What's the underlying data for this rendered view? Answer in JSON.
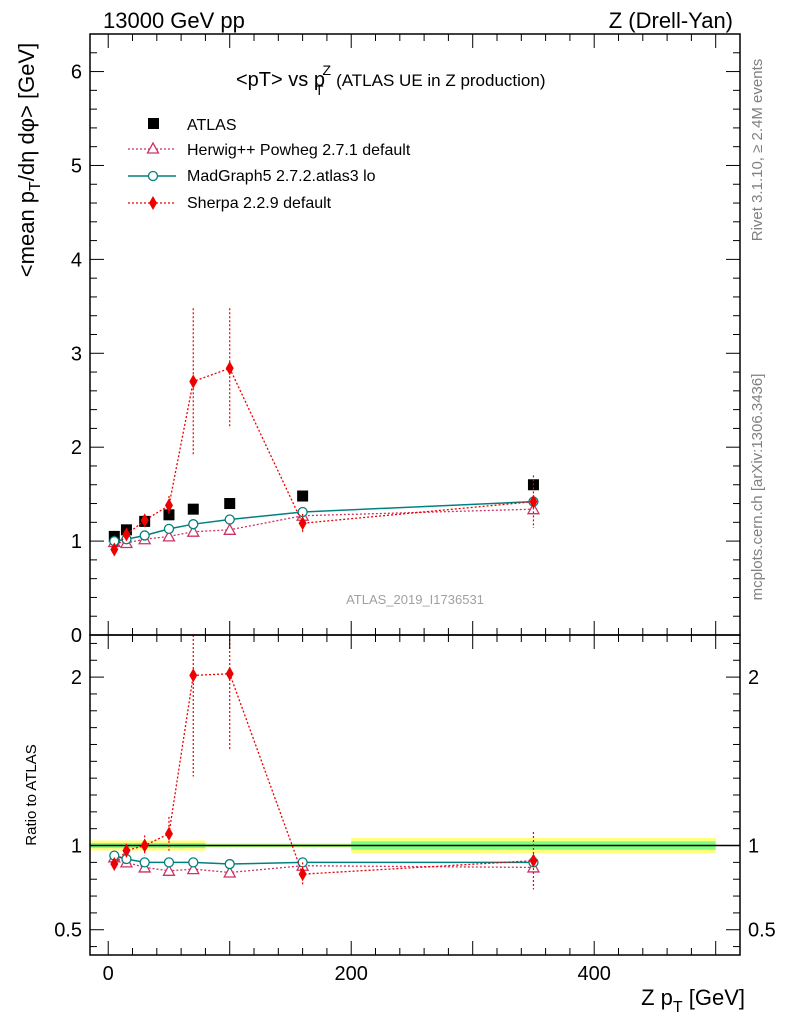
{
  "header": {
    "left": "13000 GeV pp",
    "right": "Z (Drell-Yan)"
  },
  "side_text": {
    "rivet": "Rivet 3.1.10, ≥ 2.4M events",
    "mcplots": "mcplots.cern.ch [arXiv:1306.3436]"
  },
  "watermark": "ATLAS_2019_I1736531",
  "colors": {
    "atlas": "#000000",
    "herwig": "#cc3366",
    "madgraph": "#00807f",
    "sherpa": "#ee0000",
    "band_inner": "#7fff7f",
    "band_outer": "#ffff7f"
  },
  "chart_data": [
    {
      "type": "scatter",
      "title": "<pT> vs p_T^Z (ATLAS UE in Z production)",
      "title_parts": {
        "main": "<pT> vs p",
        "sub": "T",
        "sup": "Z",
        "paren": "(ATLAS UE in Z production)"
      },
      "ylabel": "<mean p_T/dη dφ> [GeV]",
      "ylabel_parts": {
        "a": "<mean p",
        "sub": "T",
        "b": "/dη dφ> [GeV]"
      },
      "xlim": [
        -15,
        520
      ],
      "ylim": [
        0,
        6.4
      ],
      "yticks": [
        0,
        1,
        2,
        3,
        4,
        5,
        6
      ],
      "ytick_labels": [
        "0",
        "1",
        "2",
        "3",
        "4",
        "5",
        "6"
      ],
      "grid": false,
      "legend_position": "top-left",
      "series": [
        {
          "name": "ATLAS",
          "marker": "square",
          "x": [
            5,
            15,
            30,
            50,
            70,
            100,
            160,
            350
          ],
          "y": [
            1.05,
            1.12,
            1.21,
            1.28,
            1.34,
            1.4,
            1.48,
            1.6
          ]
        },
        {
          "name": "Herwig++ Powheg 2.7.1 default",
          "marker": "triangle",
          "x": [
            5,
            15,
            30,
            50,
            70,
            100,
            160,
            350
          ],
          "y": [
            0.99,
            0.98,
            1.02,
            1.05,
            1.1,
            1.12,
            1.27,
            1.34
          ]
        },
        {
          "name": "MadGraph5 2.7.2.atlas3 lo",
          "marker": "circle",
          "x": [
            5,
            15,
            30,
            50,
            70,
            100,
            160,
            350
          ],
          "y": [
            1.0,
            1.02,
            1.06,
            1.13,
            1.18,
            1.23,
            1.31,
            1.42
          ]
        },
        {
          "name": "Sherpa 2.2.9 default",
          "marker": "diamond",
          "x": [
            5,
            15,
            30,
            50,
            70,
            100,
            160,
            350
          ],
          "y": [
            0.91,
            1.07,
            1.22,
            1.38,
            2.7,
            2.84,
            1.19,
            1.42
          ],
          "err": [
            0.04,
            0.05,
            0.06,
            0.1,
            0.78,
            0.64,
            0.1,
            0.28
          ]
        }
      ]
    },
    {
      "type": "scatter",
      "xlabel": "Z p_T [GeV]",
      "xlabel_parts": {
        "a": "Z p",
        "sub": "T",
        "b": " [GeV]"
      },
      "ylabel": "Ratio to ATLAS",
      "xlim": [
        -15,
        520
      ],
      "ylim": [
        0.35,
        2.25
      ],
      "xticks": [
        0,
        200,
        400
      ],
      "xtick_labels": [
        "0",
        "200",
        "400"
      ],
      "yticks": [
        0.5,
        1,
        2
      ],
      "ytick_labels": [
        "0.5",
        "1",
        "2"
      ],
      "reference_line": 1,
      "band": [
        {
          "x0": -15,
          "x1": 80,
          "inner": [
            0.985,
            1.015
          ],
          "outer": [
            0.97,
            1.03
          ]
        },
        {
          "x0": 80,
          "x1": 200,
          "inner": [
            0.993,
            1.007
          ],
          "outer": [
            0.985,
            1.015
          ]
        },
        {
          "x0": 200,
          "x1": 500,
          "inner": [
            0.975,
            1.025
          ],
          "outer": [
            0.955,
            1.045
          ]
        }
      ],
      "series": [
        {
          "name": "Herwig++ Powheg 2.7.1 default",
          "marker": "triangle",
          "x": [
            5,
            15,
            30,
            50,
            70,
            100,
            160,
            350
          ],
          "y": [
            0.93,
            0.9,
            0.87,
            0.85,
            0.86,
            0.84,
            0.88,
            0.87
          ]
        },
        {
          "name": "MadGraph5 2.7.2.atlas3 lo",
          "marker": "circle",
          "x": [
            5,
            15,
            30,
            50,
            70,
            100,
            160,
            350
          ],
          "y": [
            0.94,
            0.92,
            0.9,
            0.9,
            0.9,
            0.89,
            0.9,
            0.9
          ]
        },
        {
          "name": "Sherpa 2.2.9 default",
          "marker": "diamond",
          "x": [
            5,
            15,
            30,
            50,
            70,
            100,
            160,
            350
          ],
          "y": [
            0.89,
            0.97,
            1.0,
            1.07,
            2.01,
            2.02,
            0.83,
            0.91
          ],
          "err": [
            0.03,
            0.04,
            0.06,
            0.1,
            0.6,
            0.45,
            0.07,
            0.17
          ]
        }
      ]
    }
  ]
}
